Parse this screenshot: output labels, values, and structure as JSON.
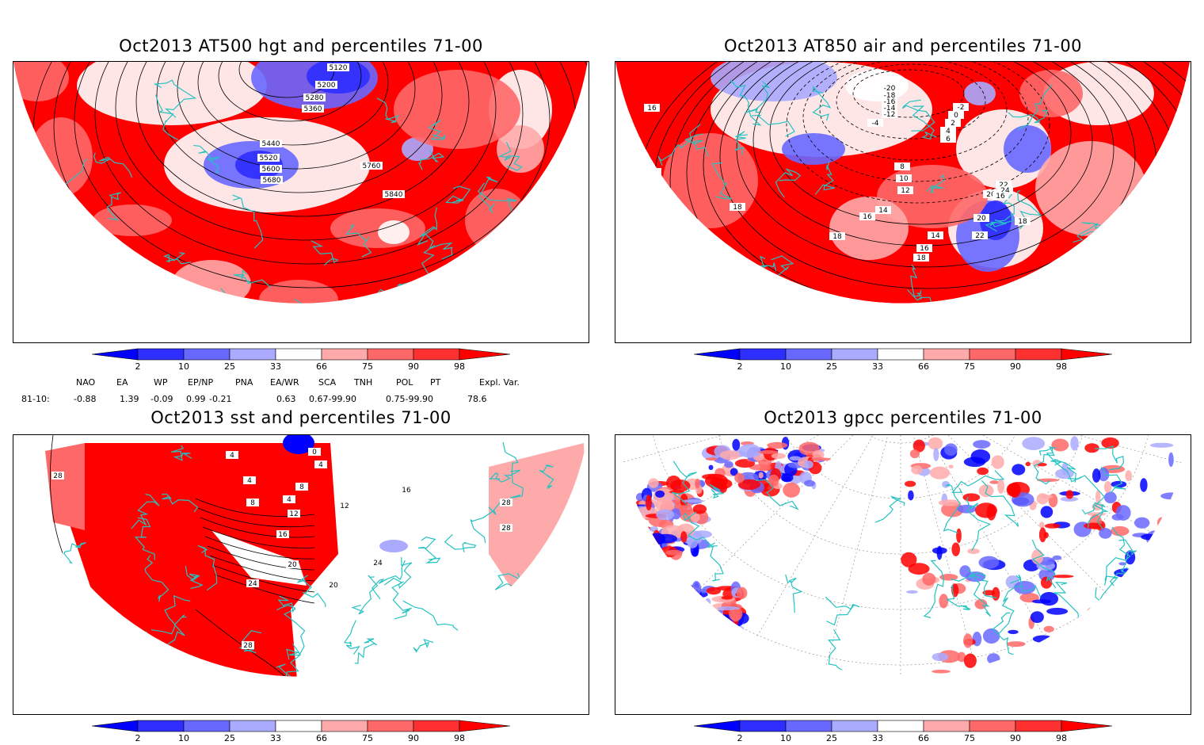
{
  "panels": [
    {
      "title": "Oct2013 AT500 hgt and percentiles 71-00",
      "contour_labels": [
        "5120",
        "5200",
        "5280",
        "5360",
        "5440",
        "5520",
        "5600",
        "5680",
        "5760",
        "5840"
      ]
    },
    {
      "title": "Oct2013 AT850 air and percentiles 71-00",
      "contour_labels": [
        "-20",
        "-18",
        "-16",
        "-14",
        "-12",
        "-4",
        "-2",
        "0",
        "2",
        "4",
        "6",
        "8",
        "10",
        "12",
        "14",
        "16",
        "18",
        "20",
        "22",
        "24",
        "16",
        "18",
        "20",
        "22",
        "14",
        "16",
        "18",
        "18",
        "16",
        "18",
        "20",
        "24"
      ]
    },
    {
      "title": "Oct2013 sst and percentiles 71-00",
      "contour_labels": [
        "28",
        "24",
        "4",
        "4",
        "8",
        "12",
        "16",
        "20",
        "24",
        "28",
        "28",
        "0",
        "4",
        "8",
        "4",
        "16",
        "20",
        "24",
        "28",
        "28",
        "12"
      ]
    },
    {
      "title": "Oct2013 gpcc percentiles 71-00",
      "contour_labels": []
    }
  ],
  "colorbar": {
    "ticks": [
      "2",
      "10",
      "25",
      "33",
      "66",
      "75",
      "90",
      "98"
    ],
    "colors": {
      "blue_end": "#0000ff",
      "blue1": "#2e2eff",
      "blue2": "#6868ff",
      "blue3": "#aaaaff",
      "white": "#ffffff",
      "red1": "#ffaaaa",
      "red2": "#ff6868",
      "red3": "#ff3030",
      "red_end": "#ff0000"
    }
  },
  "indices": {
    "headers": [
      "NAO",
      "EA",
      "WP",
      "EP/NP",
      "PNA",
      "EA/WR",
      "SCA",
      "TNH",
      "POL",
      "PT",
      "Expl. Var."
    ],
    "row_label": "81-10:",
    "values": [
      "-0.88",
      "1.39",
      "-0.09",
      "0.99",
      "-0.21",
      "0.63",
      "0.67-99.90",
      "0.75-99.90",
      "78.6"
    ]
  },
  "map_colors": {
    "coast": "#26c2c2",
    "contour": "#000000",
    "grid": "#888888"
  }
}
